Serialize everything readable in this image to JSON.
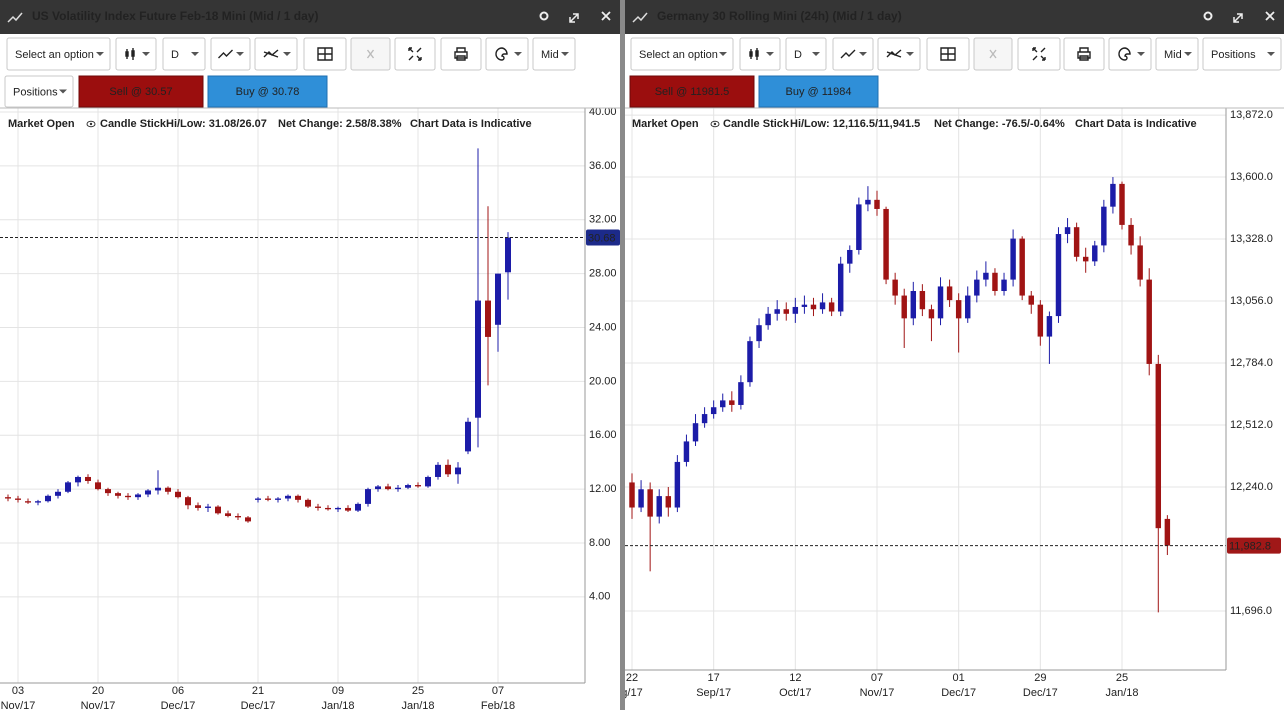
{
  "panels": [
    {
      "title": "US Volatility Index Future Feb-18 Mini (Mid / 1 day)",
      "select": "Select an option",
      "interval": "D",
      "price": "Mid",
      "positions": "Positions",
      "sell": "Sell @ 30.57",
      "buy": "Buy @ 30.78",
      "status": "Market Open",
      "chart_style": "Candle Stick",
      "hi_low": "Hi/Low: 31.08/26.07",
      "net_change": "Net Change: 2.58/8.38%",
      "net_change_color": "#1f3fb0",
      "disclaimer": "Chart Data is Indicative"
    },
    {
      "title": "Germany 30 Rolling Mini (24h) (Mid / 1 day)",
      "select": "Select an option",
      "interval": "D",
      "price": "Mid",
      "positions": "Positions",
      "sell": "Sell @ 11981.5",
      "buy": "Buy @ 11984",
      "status": "Market Open",
      "chart_style": "Candle Stick",
      "hi_low": "Hi/Low: 12,116.5/11,941.5",
      "net_change": "Net Change: -76.5/-0.64%",
      "net_change_color": "#d02020",
      "disclaimer": "Chart Data is Indicative"
    }
  ],
  "chart_data": [
    {
      "type": "candlestick",
      "up_color": "#1c1ca8",
      "down_color": "#a01414",
      "grid": true,
      "categories": [
        null,
        "03",
        null,
        null,
        null,
        null,
        null,
        null,
        null,
        "20",
        null,
        null,
        null,
        null,
        null,
        null,
        null,
        "06",
        null,
        null,
        null,
        null,
        null,
        null,
        null,
        "21",
        null,
        null,
        null,
        null,
        null,
        null,
        null,
        "09",
        null,
        null,
        null,
        null,
        null,
        null,
        null,
        "25",
        null,
        null,
        null,
        null,
        null,
        null,
        null,
        "07",
        null
      ],
      "category_months": [
        null,
        "Nov/17",
        null,
        null,
        null,
        null,
        null,
        null,
        null,
        "Nov/17",
        null,
        null,
        null,
        null,
        null,
        null,
        null,
        "Dec/17",
        null,
        null,
        null,
        null,
        null,
        null,
        null,
        "Dec/17",
        null,
        null,
        null,
        null,
        null,
        null,
        null,
        "Jan/18",
        null,
        null,
        null,
        null,
        null,
        null,
        null,
        "Jan/18",
        null,
        null,
        null,
        null,
        null,
        null,
        null,
        "Feb/18",
        null
      ],
      "open": [
        11.4,
        11.3,
        11.1,
        11.0,
        11.1,
        11.5,
        11.8,
        12.5,
        12.9,
        12.5,
        12.0,
        11.7,
        11.5,
        11.4,
        11.6,
        11.9,
        12.1,
        11.8,
        11.4,
        10.8,
        10.6,
        10.7,
        10.2,
        10.0,
        9.9,
        11.2,
        11.3,
        11.2,
        11.3,
        11.5,
        11.2,
        10.7,
        10.6,
        10.5,
        10.6,
        10.4,
        10.9,
        12.0,
        12.2,
        12.0,
        12.1,
        12.3,
        12.2,
        12.9,
        13.8,
        13.1,
        14.8,
        17.3,
        26.0,
        24.2,
        28.1
      ],
      "high": [
        11.6,
        11.5,
        11.3,
        11.2,
        11.6,
        12.0,
        12.6,
        13.0,
        13.1,
        12.7,
        12.1,
        11.8,
        11.7,
        11.7,
        12.0,
        13.4,
        12.2,
        12.0,
        11.5,
        11.0,
        10.9,
        10.8,
        10.4,
        10.2,
        10.0,
        11.4,
        11.5,
        11.4,
        11.6,
        11.6,
        11.3,
        10.9,
        10.8,
        10.7,
        10.8,
        11.0,
        12.1,
        12.3,
        12.4,
        12.3,
        12.4,
        12.5,
        13.0,
        14.0,
        14.2,
        14.0,
        17.3,
        37.3,
        33.0,
        28.0,
        31.08
      ],
      "low": [
        11.1,
        11.0,
        10.9,
        10.8,
        11.0,
        11.3,
        11.7,
        12.2,
        12.4,
        11.9,
        11.5,
        11.3,
        11.2,
        11.2,
        11.4,
        11.6,
        11.6,
        11.3,
        10.5,
        10.4,
        10.3,
        10.1,
        9.9,
        9.7,
        9.5,
        11.0,
        11.1,
        11.0,
        11.1,
        11.0,
        10.6,
        10.4,
        10.4,
        10.3,
        10.3,
        10.3,
        10.7,
        11.8,
        11.9,
        11.8,
        12.0,
        12.1,
        12.1,
        12.7,
        12.9,
        12.4,
        14.6,
        15.1,
        19.7,
        22.2,
        26.07
      ],
      "close": [
        11.3,
        11.2,
        11.0,
        11.1,
        11.5,
        11.8,
        12.5,
        12.9,
        12.6,
        12.0,
        11.7,
        11.5,
        11.4,
        11.6,
        11.9,
        12.1,
        11.8,
        11.4,
        10.8,
        10.6,
        10.7,
        10.2,
        10.0,
        9.9,
        9.6,
        11.3,
        11.2,
        11.3,
        11.5,
        11.2,
        10.7,
        10.6,
        10.5,
        10.6,
        10.4,
        10.9,
        12.0,
        12.2,
        12.0,
        12.1,
        12.3,
        12.2,
        12.9,
        13.8,
        13.1,
        13.6,
        17.0,
        26.0,
        23.3,
        28.0,
        30.68
      ],
      "last_price": 30.68,
      "last_color": "#1c2a8a",
      "ylim": [
        -2.4,
        40.3
      ],
      "yticks": [
        {
          "value": 4,
          "label": "4.00"
        },
        {
          "value": 8,
          "label": "8.00"
        },
        {
          "value": 12,
          "label": "12.00"
        },
        {
          "value": 16,
          "label": "16.00"
        },
        {
          "value": 20,
          "label": "20.00"
        },
        {
          "value": 24,
          "label": "24.00"
        },
        {
          "value": 28,
          "label": "28.00"
        },
        {
          "value": 32,
          "label": "32.00"
        },
        {
          "value": 36,
          "label": "36.00"
        },
        {
          "value": 40,
          "label": "40.00"
        }
      ]
    },
    {
      "type": "candlestick",
      "up_color": "#1c1ca8",
      "down_color": "#a01414",
      "grid": true,
      "categories": [
        "22",
        null,
        null,
        null,
        null,
        null,
        null,
        null,
        null,
        "17",
        null,
        null,
        null,
        null,
        null,
        null,
        null,
        null,
        "12",
        null,
        null,
        null,
        null,
        null,
        null,
        null,
        null,
        "07",
        null,
        null,
        null,
        null,
        null,
        null,
        null,
        null,
        "01",
        null,
        null,
        null,
        null,
        null,
        null,
        null,
        null,
        "29",
        null,
        null,
        null,
        null,
        null,
        null,
        null,
        null,
        "25",
        null,
        null,
        null,
        null,
        null
      ],
      "category_months": [
        "g/17",
        null,
        null,
        null,
        null,
        null,
        null,
        null,
        null,
        "Sep/17",
        null,
        null,
        null,
        null,
        null,
        null,
        null,
        null,
        "Oct/17",
        null,
        null,
        null,
        null,
        null,
        null,
        null,
        null,
        "Nov/17",
        null,
        null,
        null,
        null,
        null,
        null,
        null,
        null,
        "Dec/17",
        null,
        null,
        null,
        null,
        null,
        null,
        null,
        null,
        "Dec/17",
        null,
        null,
        null,
        null,
        null,
        null,
        null,
        null,
        "Jan/18",
        null,
        null,
        null,
        null,
        null
      ],
      "open": [
        12260,
        12150,
        12230,
        12110,
        12200,
        12150,
        12350,
        12440,
        12520,
        12560,
        12590,
        12620,
        12600,
        12700,
        12880,
        12950,
        13000,
        13020,
        13000,
        13030,
        13040,
        13020,
        13050,
        13010,
        13220,
        13280,
        13480,
        13500,
        13460,
        13150,
        13080,
        12980,
        13100,
        13020,
        12980,
        13120,
        13060,
        12980,
        13080,
        13150,
        13180,
        13100,
        13150,
        13330,
        13080,
        13040,
        12900,
        12990,
        13350,
        13380,
        13250,
        13230,
        13300,
        13470,
        13570,
        13390,
        13300,
        13150,
        12780,
        12100
      ],
      "high": [
        12300,
        12270,
        12260,
        12230,
        12240,
        12380,
        12470,
        12560,
        12590,
        12620,
        12650,
        12660,
        12730,
        12900,
        12980,
        13030,
        13060,
        13050,
        13070,
        13080,
        13070,
        13090,
        13070,
        13250,
        13300,
        13510,
        13560,
        13540,
        13470,
        13180,
        13110,
        13140,
        13130,
        13040,
        13160,
        13150,
        13090,
        13120,
        13190,
        13230,
        13200,
        13180,
        13370,
        13340,
        13100,
        13060,
        13010,
        13380,
        13420,
        13400,
        13290,
        13320,
        13500,
        13600,
        13580,
        13420,
        13340,
        13200,
        12820,
        12116.5
      ],
      "low": [
        12100,
        12130,
        11870,
        12080,
        12110,
        12130,
        12330,
        12420,
        12500,
        12540,
        12570,
        12570,
        12580,
        12680,
        12850,
        12930,
        12970,
        12970,
        12960,
        13000,
        12990,
        13000,
        12990,
        12990,
        13180,
        13260,
        13450,
        13430,
        13130,
        13040,
        12850,
        12950,
        12990,
        12880,
        12950,
        13030,
        12830,
        12960,
        13050,
        13120,
        13080,
        13080,
        13120,
        13060,
        13000,
        12860,
        12780,
        12960,
        13310,
        13230,
        13180,
        13210,
        13270,
        13440,
        13370,
        13260,
        13120,
        12730,
        11690,
        11941.5
      ],
      "close": [
        12150,
        12230,
        12110,
        12200,
        12150,
        12350,
        12440,
        12520,
        12560,
        12590,
        12620,
        12600,
        12700,
        12880,
        12950,
        13000,
        13020,
        13000,
        13030,
        13040,
        13020,
        13050,
        13010,
        13220,
        13280,
        13480,
        13500,
        13460,
        13150,
        13080,
        12980,
        13100,
        13020,
        12980,
        13120,
        13060,
        12980,
        13080,
        13150,
        13180,
        13100,
        13150,
        13330,
        13080,
        13040,
        12900,
        12990,
        13350,
        13380,
        13250,
        13230,
        13300,
        13470,
        13570,
        13390,
        13300,
        13150,
        12780,
        12059.3,
        11982.8
      ],
      "last_price": {
        "value": 11982.8,
        "label": "11,982.8"
      },
      "last_color": "#a01818",
      "ylim": [
        11437,
        13903
      ],
      "yticks": [
        {
          "value": 11696,
          "label": "11,696.0"
        },
        {
          "value": 12240,
          "label": "12,240.0"
        },
        {
          "value": 12512,
          "label": "12,512.0"
        },
        {
          "value": 12784,
          "label": "12,784.0"
        },
        {
          "value": 13056,
          "label": "13,056.0"
        },
        {
          "value": 13328,
          "label": "13,328.0"
        },
        {
          "value": 13600,
          "label": "13,600.0"
        },
        {
          "value": 13872,
          "label": "13,872.0"
        }
      ]
    }
  ]
}
